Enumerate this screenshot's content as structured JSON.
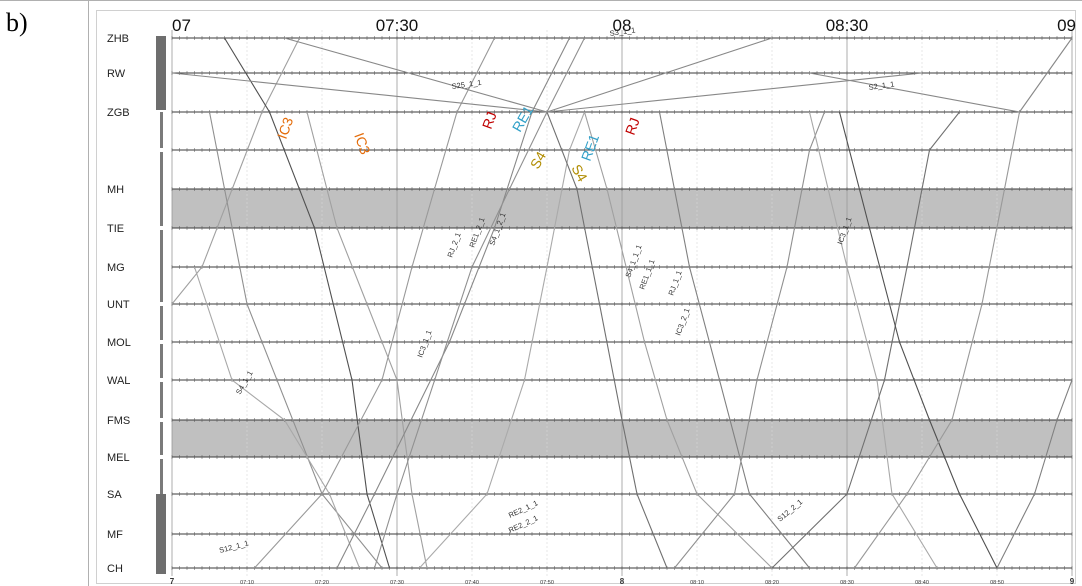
{
  "panel": {
    "label": "b)"
  },
  "chart_data": {
    "type": "line",
    "title": "",
    "top_time_labels": [
      "07",
      "07:30",
      "08",
      "08:30",
      "09"
    ],
    "top_time_minutes": [
      420,
      450,
      480,
      510,
      540
    ],
    "bottom_time_labels": [
      "7",
      "07:10",
      "07:20",
      "07:30",
      "07:40",
      "07:50",
      "8",
      "08:10",
      "08:20",
      "08:30",
      "08:40",
      "08:50",
      "9"
    ],
    "bottom_time_minutes": [
      420,
      430,
      440,
      450,
      460,
      470,
      480,
      490,
      500,
      510,
      520,
      530,
      540
    ],
    "xlim": [
      420,
      540
    ],
    "stations": [
      "ZHB",
      "RW",
      "ZGB",
      "",
      "MH",
      "TIE",
      "MG",
      "UNT",
      "MOL",
      "WAL",
      "FMS",
      "MEL",
      "SA",
      "MF",
      "CH"
    ],
    "shaded_blocks": [
      [
        "MH",
        "TIE"
      ],
      [
        "FMS",
        "MEL"
      ]
    ],
    "colored_labels": [
      {
        "text": "IC3",
        "color": "#e46c0a"
      },
      {
        "text": "IC3",
        "color": "#e46c0a"
      },
      {
        "text": "RJ",
        "color": "#c00000"
      },
      {
        "text": "RE1",
        "color": "#31a0c8"
      },
      {
        "text": "S4",
        "color": "#b08c00"
      },
      {
        "text": "S4",
        "color": "#b08c00"
      },
      {
        "text": "RE1",
        "color": "#31a0c8"
      },
      {
        "text": "RJ",
        "color": "#c00000"
      }
    ],
    "train_labels": [
      "RJ_2_1",
      "RE1_2_1",
      "S4_1_2_1",
      "IC3_2_1",
      "IC3_1_1",
      "RJ_1_1",
      "RE1_1_1",
      "S4_1_1_1",
      "S12_2_1",
      "S12_1_1",
      "RE2_1_1",
      "RE2_2_1",
      "S2_1_1",
      "S25_1_1",
      "S3_1_1",
      "IC3_1_1",
      "S4_1_1"
    ],
    "series": [
      {
        "color": "#a0a0a0",
        "points": [
          [
            420,
            7
          ],
          [
            424,
            6
          ],
          [
            432,
            2
          ],
          [
            437,
            0
          ]
        ]
      },
      {
        "color": "#909090",
        "points": [
          [
            425,
            2
          ],
          [
            430,
            7
          ],
          [
            440,
            12
          ],
          [
            448,
            14
          ]
        ]
      },
      {
        "color": "#a8a8a8",
        "points": [
          [
            423,
            6
          ],
          [
            428,
            9
          ],
          [
            435,
            10
          ],
          [
            441,
            12
          ],
          [
            445,
            14
          ]
        ]
      },
      {
        "color": "#505050",
        "points": [
          [
            427,
            0
          ],
          [
            433,
            2
          ],
          [
            439,
            5
          ],
          [
            444,
            9
          ],
          [
            446,
            12
          ],
          [
            449,
            14
          ]
        ]
      },
      {
        "color": "#999999",
        "points": [
          [
            431,
            14
          ],
          [
            440,
            12
          ],
          [
            448,
            9
          ],
          [
            452,
            6
          ],
          [
            455,
            4
          ],
          [
            458,
            2
          ],
          [
            463,
            0
          ]
        ]
      },
      {
        "color": "#a0a0a0",
        "points": [
          [
            438,
            2
          ],
          [
            442,
            5
          ],
          [
            446,
            7
          ],
          [
            450,
            9
          ],
          [
            452,
            12
          ],
          [
            454,
            14
          ]
        ]
      },
      {
        "color": "#888888",
        "points": [
          [
            442,
            14
          ],
          [
            447,
            12
          ],
          [
            457,
            8
          ],
          [
            463,
            5
          ],
          [
            468,
            2
          ],
          [
            473,
            0
          ]
        ]
      },
      {
        "color": "#909090",
        "points": [
          [
            447,
            14
          ],
          [
            450,
            12
          ],
          [
            460,
            6
          ],
          [
            465,
            4
          ],
          [
            470,
            2
          ],
          [
            475,
            0
          ]
        ]
      },
      {
        "color": "#aaaaaa",
        "points": [
          [
            453,
            14
          ],
          [
            462,
            12
          ],
          [
            467,
            9
          ],
          [
            470,
            6
          ],
          [
            473,
            3
          ],
          [
            475,
            2
          ]
        ]
      },
      {
        "color": "#707070",
        "points": [
          [
            470,
            2
          ],
          [
            474,
            4
          ],
          [
            477,
            7
          ],
          [
            480,
            10
          ],
          [
            482,
            12
          ],
          [
            486,
            14
          ]
        ]
      },
      {
        "color": "#a0a0a0",
        "points": [
          [
            475,
            2
          ],
          [
            478,
            4
          ],
          [
            483,
            8
          ],
          [
            486,
            10
          ],
          [
            490,
            12
          ],
          [
            500,
            14
          ]
        ]
      },
      {
        "color": "#808080",
        "points": [
          [
            485,
            2
          ],
          [
            489,
            6
          ],
          [
            493,
            9
          ],
          [
            497,
            12
          ],
          [
            505,
            14
          ]
        ]
      },
      {
        "color": "#909090",
        "points": [
          [
            487,
            14
          ],
          [
            495,
            12
          ],
          [
            498,
            9
          ],
          [
            502,
            6
          ],
          [
            505,
            3
          ],
          [
            507,
            2
          ]
        ]
      },
      {
        "color": "#a8a8a8",
        "points": [
          [
            505,
            2
          ],
          [
            510,
            6
          ],
          [
            514,
            9
          ],
          [
            516,
            12
          ],
          [
            522,
            14
          ]
        ]
      },
      {
        "color": "#707070",
        "points": [
          [
            500,
            14
          ],
          [
            510,
            12
          ],
          [
            515,
            9
          ],
          [
            518,
            6
          ],
          [
            521,
            3
          ],
          [
            525,
            2
          ]
        ]
      },
      {
        "color": "#505050",
        "points": [
          [
            509,
            2
          ],
          [
            513,
            5
          ],
          [
            517,
            8
          ],
          [
            521,
            10
          ],
          [
            525,
            12
          ],
          [
            530,
            14
          ]
        ]
      },
      {
        "color": "#999999",
        "points": [
          [
            511,
            14
          ],
          [
            518,
            12
          ],
          [
            524,
            10
          ],
          [
            528,
            7
          ],
          [
            531,
            4
          ],
          [
            533,
            2
          ]
        ]
      },
      {
        "color": "#808080",
        "points": [
          [
            530,
            14
          ],
          [
            535,
            12
          ],
          [
            538,
            10
          ],
          [
            540,
            9
          ]
        ]
      },
      {
        "color": "#888888",
        "points": [
          [
            420,
            1
          ],
          [
            470,
            2
          ]
        ]
      },
      {
        "color": "#888888",
        "points": [
          [
            435,
            0
          ],
          [
            470,
            2
          ]
        ]
      },
      {
        "color": "#888888",
        "points": [
          [
            470,
            2
          ],
          [
            500,
            0
          ]
        ]
      },
      {
        "color": "#888888",
        "points": [
          [
            470,
            2
          ],
          [
            520,
            1
          ]
        ]
      },
      {
        "color": "#888888",
        "points": [
          [
            505,
            1
          ],
          [
            533,
            2
          ]
        ]
      },
      {
        "color": "#888888",
        "points": [
          [
            533,
            2
          ],
          [
            540,
            0
          ]
        ]
      }
    ]
  }
}
